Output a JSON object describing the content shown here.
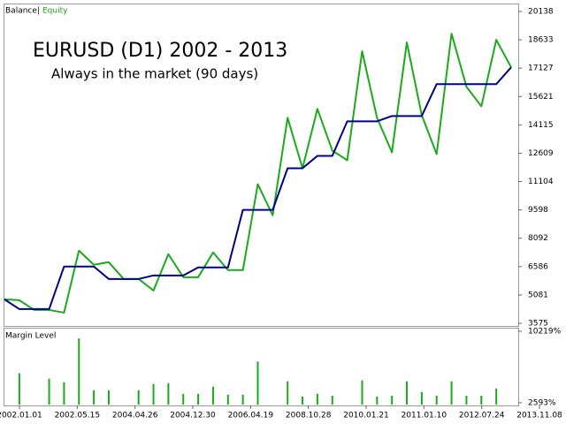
{
  "chart_data": [
    {
      "type": "line",
      "title": "EURUSD (D1) 2002 - 2013",
      "subtitle": "Always in the market (90 days)",
      "legend_separator": "|",
      "legend": "top-left",
      "series": [
        {
          "name": "Balance",
          "color": "#00008b",
          "values": [
            4847,
            4329,
            4329,
            4329,
            6588,
            6588,
            6588,
            5929,
            5929,
            5929,
            6117,
            6117,
            6117,
            6541,
            6541,
            6541,
            9598,
            9598,
            9598,
            11810,
            11810,
            12469,
            12469,
            14304,
            14304,
            14304,
            14586,
            14586,
            14586,
            16280,
            16280,
            16280,
            16280,
            16280,
            17174
          ]
        },
        {
          "name": "Equity",
          "color": "#1aab1a",
          "values": [
            4847,
            4800,
            4282,
            4282,
            4141,
            7434,
            6682,
            6823,
            5929,
            5929,
            5317,
            7246,
            6023,
            6023,
            7340,
            6400,
            6400,
            10963,
            9316,
            14492,
            11810,
            14963,
            12751,
            12234,
            18021,
            14492,
            12657,
            18491,
            14633,
            12563,
            18962,
            16139,
            15104,
            18632,
            17174
          ]
        }
      ],
      "ylim": [
        3434,
        20514
      ],
      "yticks": [
        20138,
        18633,
        17127,
        15621,
        14115,
        12609,
        11104,
        9598,
        8092,
        6586,
        5081,
        3575
      ]
    },
    {
      "type": "bar",
      "title": "Margin Level",
      "color": "#1aab1a",
      "values": [
        null,
        5733,
        null,
        5161,
        4779,
        9451,
        3921,
        3921,
        null,
        3921,
        4588,
        4684,
        3540,
        3540,
        4302,
        3444,
        3444,
        6972,
        null,
        4874,
        3254,
        3540,
        3349,
        null,
        4970,
        3254,
        3349,
        4874,
        3730,
        3349,
        4874,
        3349,
        3349,
        4112,
        null
      ],
      "ylim": [
        2300,
        10500
      ],
      "yticks": [
        {
          "value": 10219,
          "label": "10219%"
        },
        {
          "value": 2593,
          "label": "2593%"
        }
      ],
      "x_labels": [
        "2002.01.01",
        "2002.05.15",
        "2004.04.26",
        "2004.12.30",
        "2006.04.19",
        "2008.10.28",
        "2010.01.21",
        "2011.01.10",
        "2012.07.24",
        "2013.11.08"
      ]
    }
  ]
}
